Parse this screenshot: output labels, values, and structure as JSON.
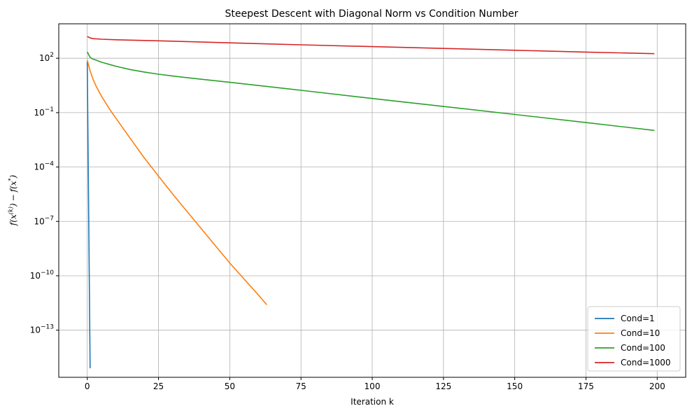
{
  "chart_data": {
    "type": "line",
    "title": "Steepest Descent with Diagonal Norm vs Condition Number",
    "xlabel": "Iteration k",
    "ylabel": {
      "f": "f",
      "x": "x",
      "k": "(k)",
      "minus": "−",
      "star": "*",
      "lparen": "(",
      "rparen": ")"
    },
    "yscale": "log",
    "xlim": [
      -10,
      210
    ],
    "ylim_log10": [
      -15.6,
      3.9
    ],
    "xticks": [
      0,
      25,
      50,
      75,
      100,
      125,
      150,
      175,
      200
    ],
    "xtick_labels": [
      "0",
      "25",
      "50",
      "75",
      "100",
      "125",
      "150",
      "175",
      "200"
    ],
    "yticks_log10": [
      2,
      -1,
      -4,
      -7,
      -10,
      -13
    ],
    "ytick_labels": [
      {
        "base": "10",
        "exp": "2"
      },
      {
        "base": "10",
        "exp": "−1"
      },
      {
        "base": "10",
        "exp": "−4"
      },
      {
        "base": "10",
        "exp": "−7"
      },
      {
        "base": "10",
        "exp": "−10"
      },
      {
        "base": "10",
        "exp": "−13"
      }
    ],
    "grid": true,
    "legend_position": "lower-right",
    "series": [
      {
        "name": "Cond=1",
        "color": "#1f77b4",
        "x": [
          0,
          1
        ],
        "log10_y": [
          1.8,
          -15.1
        ]
      },
      {
        "name": "Cond=10",
        "color": "#ff7f0e",
        "x": [
          0,
          1,
          2,
          3,
          5,
          8,
          10,
          15,
          20,
          25,
          30,
          40,
          50,
          60,
          63
        ],
        "log10_y": [
          1.9,
          1.3,
          0.85,
          0.5,
          -0.1,
          -0.85,
          -1.3,
          -2.4,
          -3.5,
          -4.5,
          -5.5,
          -7.4,
          -9.3,
          -11.05,
          -11.6
        ]
      },
      {
        "name": "Cond=100",
        "color": "#2ca02c",
        "x": [
          0,
          1,
          2,
          3,
          5,
          8,
          10,
          15,
          20,
          25,
          30,
          40,
          50,
          75,
          100,
          125,
          150,
          175,
          199
        ],
        "log10_y": [
          2.35,
          2.05,
          1.95,
          1.9,
          1.78,
          1.65,
          1.56,
          1.38,
          1.24,
          1.12,
          1.02,
          0.84,
          0.67,
          0.23,
          -0.22,
          -0.66,
          -1.1,
          -1.55,
          -1.98
        ]
      },
      {
        "name": "Cond=1000",
        "color": "#d62728",
        "x": [
          0,
          1,
          2,
          5,
          10,
          25,
          50,
          75,
          100,
          125,
          150,
          175,
          199
        ],
        "log10_y": [
          3.2,
          3.12,
          3.08,
          3.05,
          3.02,
          2.96,
          2.85,
          2.74,
          2.64,
          2.54,
          2.44,
          2.34,
          2.25
        ]
      }
    ]
  }
}
